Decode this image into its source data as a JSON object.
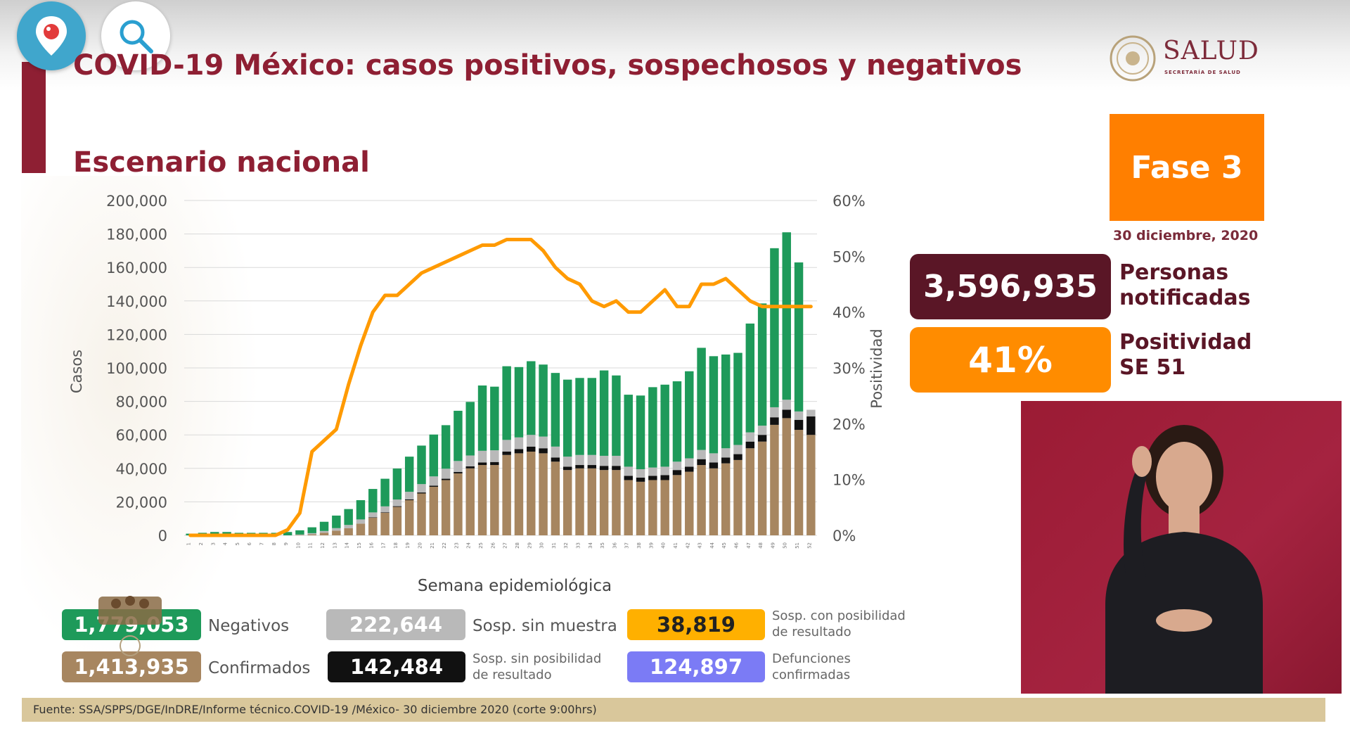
{
  "header": {
    "title": "COVID-19 México: casos positivos, sospechosos y negativos",
    "subtitle": "Escenario nacional",
    "brand": "SALUD",
    "brand_sub": "SECRETARÍA DE SALUD"
  },
  "phase": {
    "label": "Fase 3",
    "date": "30 diciembre, 2020",
    "color": "#ff7f00"
  },
  "kpis": {
    "personas_value": "3,596,935",
    "personas_label_1": "Personas",
    "personas_label_2": "notificadas",
    "positividad_value": "41%",
    "positividad_label_1": "Positividad",
    "positividad_label_2": "SE 51"
  },
  "legend": {
    "negativos_value": "1,779,053",
    "negativos_label": "Negativos",
    "confirmados_value": "1,413,935",
    "confirmados_label": "Confirmados",
    "sin_muestra_value": "222,644",
    "sin_muestra_label": "Sosp. sin muestra",
    "sin_posibilidad_value": "142,484",
    "sin_posibilidad_label_1": "Sosp. sin posibilidad",
    "sin_posibilidad_label_2": "de resultado",
    "con_posibilidad_value": "38,819",
    "con_posibilidad_label_1": "Sosp. con posibilidad",
    "con_posibilidad_label_2": "de resultado",
    "defunciones_value": "124,897",
    "defunciones_label_1": "Defunciones",
    "defunciones_label_2": "confirmadas"
  },
  "footer": {
    "source": "Fuente: SSA/SPPS/DGE/InDRE/Informe técnico.COVID-19 /México- 30 diciembre 2020 (corte 9:00hrs)"
  },
  "icons": {
    "periscope": "periscope-pin-icon",
    "search": "search-icon",
    "logo": "mexico-coat-of-arms-icon"
  },
  "colors": {
    "confirmados": "#a78660",
    "sin_posibilidad": "#111111",
    "con_posibilidad": "#ffb000",
    "sin_muestra": "#b9b9b9",
    "negativos": "#1e9a5a",
    "defunciones": "#7b7bf5",
    "positividad_line": "#ff9a00",
    "brand": "#8e1f33"
  },
  "chart_data": {
    "type": "bar",
    "stacked": true,
    "xlabel": "Semana epidemiológica",
    "ylabel": "Casos",
    "y2label": "Positividad",
    "ylim": [
      0,
      200000
    ],
    "y2lim": [
      0,
      60
    ],
    "y_ticks": [
      "0",
      "20,000",
      "40,000",
      "60,000",
      "80,000",
      "100,000",
      "120,000",
      "140,000",
      "160,000",
      "180,000",
      "200,000"
    ],
    "y2_ticks": [
      "0%",
      "10%",
      "20%",
      "30%",
      "40%",
      "50%",
      "60%"
    ],
    "categories": [
      "1",
      "2",
      "3",
      "4",
      "5",
      "6",
      "7",
      "8",
      "9",
      "10",
      "11",
      "12",
      "13",
      "14",
      "15",
      "16",
      "17",
      "18",
      "19",
      "20",
      "21",
      "22",
      "23",
      "24",
      "25",
      "26",
      "27",
      "28",
      "29",
      "30",
      "31",
      "32",
      "33",
      "34",
      "35",
      "36",
      "37",
      "38",
      "39",
      "40",
      "41",
      "42",
      "43",
      "44",
      "45",
      "46",
      "47",
      "48",
      "49",
      "50",
      "51",
      "52"
    ],
    "series": [
      {
        "name": "Confirmados",
        "values": [
          0,
          0,
          0,
          0,
          0,
          0,
          0,
          0,
          0,
          200,
          600,
          1600,
          2800,
          4200,
          7000,
          10500,
          13500,
          17000,
          21000,
          25000,
          29000,
          33000,
          37000,
          40000,
          42000,
          42000,
          48000,
          49000,
          50000,
          49000,
          44000,
          39000,
          40000,
          40000,
          39000,
          39000,
          33000,
          32000,
          33000,
          33000,
          36000,
          38000,
          42000,
          40000,
          43000,
          45000,
          52000,
          56000,
          66000,
          70000,
          63000,
          60000
        ]
      },
      {
        "name": "Sosp. sin posibilidad de resultado",
        "values": [
          0,
          0,
          0,
          0,
          0,
          0,
          0,
          0,
          0,
          0,
          0,
          0,
          0,
          0,
          0,
          200,
          300,
          400,
          500,
          600,
          700,
          800,
          900,
          1200,
          1500,
          1800,
          2000,
          2500,
          3000,
          3000,
          2500,
          2000,
          2000,
          2000,
          2500,
          2500,
          2500,
          2500,
          2500,
          3000,
          3000,
          3000,
          3500,
          3500,
          3500,
          3500,
          4000,
          4000,
          4500,
          5000,
          6000,
          11000
        ]
      },
      {
        "name": "Sosp. con posibilidad de resultado",
        "values": [
          0,
          0,
          0,
          0,
          0,
          0,
          0,
          0,
          0,
          0,
          0,
          0,
          0,
          0,
          0,
          0,
          0,
          0,
          0,
          0,
          0,
          0,
          0,
          0,
          0,
          0,
          0,
          0,
          0,
          0,
          0,
          0,
          0,
          0,
          0,
          0,
          0,
          0,
          0,
          0,
          0,
          0,
          0,
          0,
          0,
          0,
          0,
          0,
          0,
          0,
          0,
          0
        ]
      },
      {
        "name": "Sosp. sin muestra",
        "values": [
          0,
          0,
          0,
          0,
          0,
          0,
          0,
          0,
          0,
          300,
          700,
          1000,
          1500,
          2000,
          2500,
          3000,
          3500,
          4000,
          4500,
          5000,
          5500,
          6000,
          6500,
          6500,
          7000,
          7000,
          7000,
          7000,
          7000,
          7000,
          6500,
          6000,
          6000,
          6000,
          6000,
          6000,
          5500,
          5000,
          5000,
          5000,
          5000,
          5000,
          5500,
          5500,
          5500,
          5500,
          5500,
          5500,
          6000,
          6000,
          5000,
          4000
        ]
      },
      {
        "name": "Negativos",
        "values": [
          1000,
          1500,
          2000,
          2000,
          1500,
          1500,
          1500,
          1500,
          2000,
          2500,
          3500,
          5500,
          7500,
          9500,
          11500,
          14000,
          16500,
          18500,
          21000,
          23000,
          25000,
          26000,
          30000,
          32000,
          39000,
          38000,
          44000,
          42000,
          44000,
          43000,
          44000,
          46000,
          46000,
          46000,
          51000,
          48000,
          43000,
          44000,
          48000,
          49000,
          48000,
          52000,
          61000,
          58000,
          56000,
          55000,
          65000,
          73000,
          95000,
          100000,
          89000,
          0
        ]
      }
    ],
    "line": {
      "name": "Positividad",
      "values": [
        0,
        0,
        0,
        0,
        0,
        0,
        0,
        0,
        1,
        4,
        15,
        17,
        19,
        27,
        34,
        40,
        43,
        43,
        45,
        47,
        48,
        49,
        50,
        51,
        52,
        52,
        53,
        53,
        53,
        51,
        48,
        46,
        45,
        42,
        41,
        42,
        40,
        40,
        42,
        44,
        41,
        41,
        45,
        45,
        46,
        44,
        42,
        41,
        41,
        41,
        41,
        41
      ]
    }
  }
}
